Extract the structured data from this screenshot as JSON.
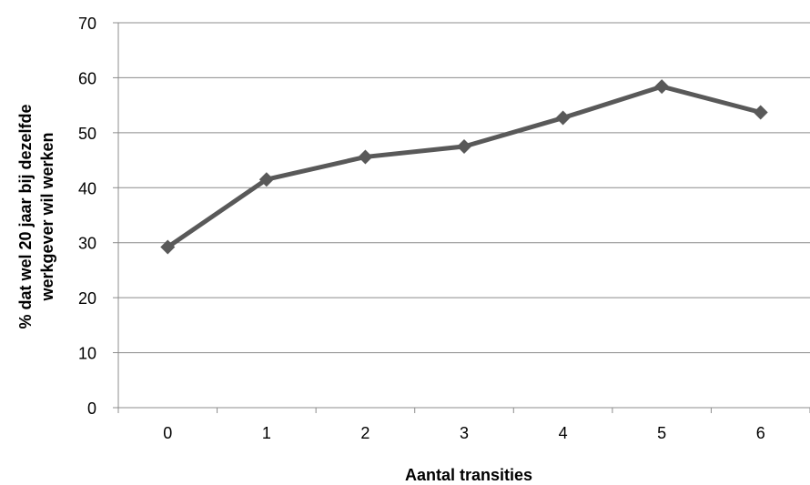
{
  "chart_data": {
    "type": "line",
    "title": "",
    "xlabel": "Aantal transities",
    "ylabel": "% dat wel 20 jaar bij dezelfde werkgever wil werken",
    "ylabel_lines": [
      "% dat wel 20 jaar bij dezelfde",
      "werkgever wil werken"
    ],
    "categories": [
      "0",
      "1",
      "2",
      "3",
      "4",
      "5",
      "6"
    ],
    "series": [
      {
        "name": "",
        "values": [
          29.2,
          41.5,
          45.6,
          47.5,
          52.7,
          58.4,
          53.7
        ]
      }
    ],
    "ylim": [
      0,
      70
    ],
    "yticks": [
      "0",
      "10",
      "20",
      "30",
      "40",
      "50",
      "60",
      "70"
    ],
    "grid": true,
    "legend": "none",
    "marker": "diamond",
    "line_color": "#595959"
  }
}
